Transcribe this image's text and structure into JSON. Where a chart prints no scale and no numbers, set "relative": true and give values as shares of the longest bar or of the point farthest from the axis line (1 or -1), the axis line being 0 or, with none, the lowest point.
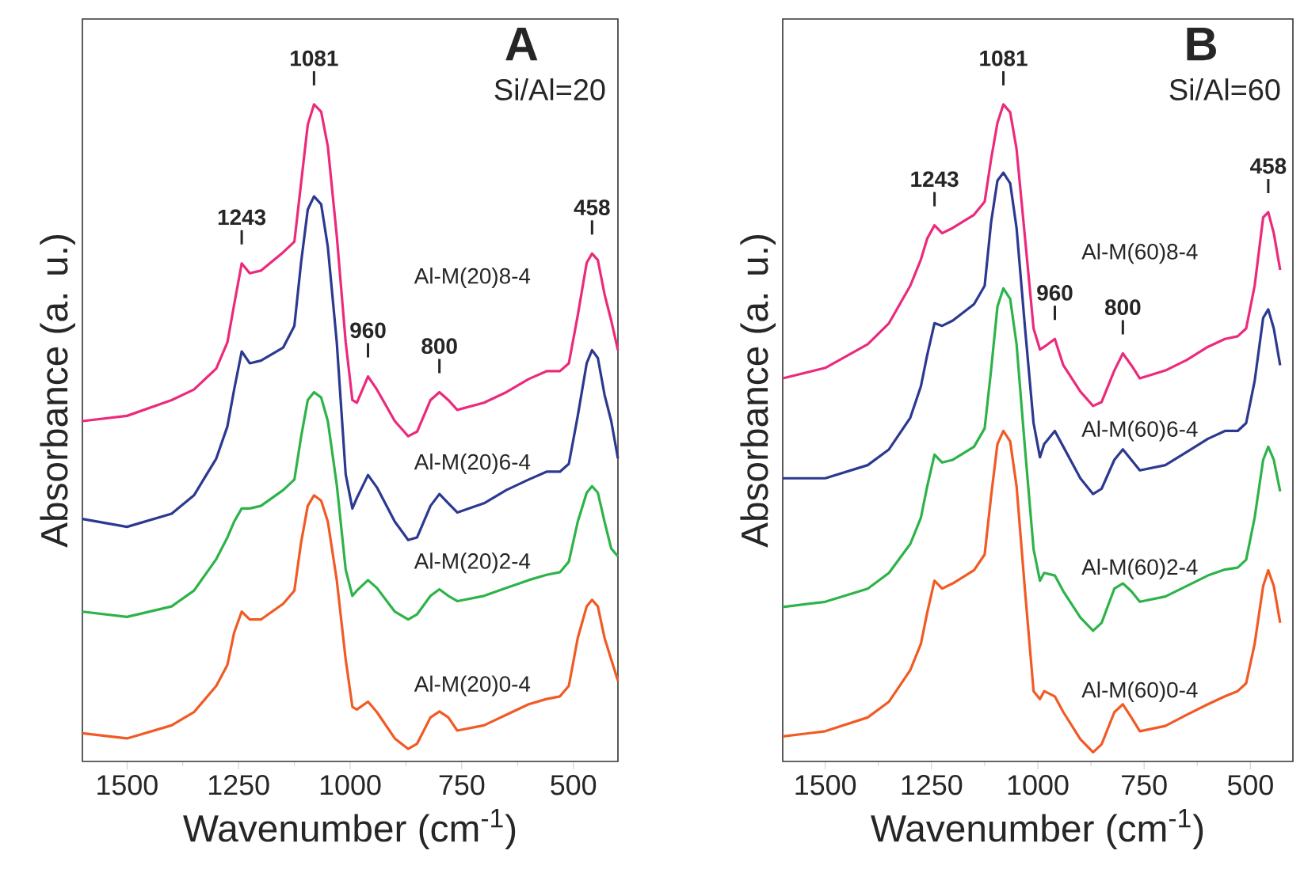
{
  "chart_data": [
    {
      "type": "line",
      "title": "A",
      "subtitle": "Si/Al=20",
      "xlabel": "Wavenumber (cm$^{-1}$)",
      "ylabel": "Absorbance (a. u.)",
      "relative": true,
      "xlim": [
        1600,
        400
      ],
      "xticks": [
        1500,
        1250,
        1000,
        750,
        500
      ],
      "x": [
        1600,
        1500,
        1400,
        1350,
        1300,
        1275,
        1260,
        1243,
        1225,
        1200,
        1150,
        1125,
        1110,
        1095,
        1081,
        1065,
        1050,
        1030,
        1010,
        995,
        985,
        960,
        940,
        900,
        870,
        850,
        820,
        800,
        780,
        760,
        700,
        650,
        600,
        560,
        530,
        510,
        490,
        470,
        458,
        445,
        430,
        415,
        400
      ],
      "series": [
        {
          "name": "Al-M(20)8-4",
          "color": "#ec2a7c",
          "values": [
            0.518,
            0.526,
            0.55,
            0.566,
            0.598,
            0.638,
            0.695,
            0.758,
            0.743,
            0.747,
            0.775,
            0.791,
            0.88,
            0.969,
            1,
            0.989,
            0.936,
            0.8,
            0.638,
            0.55,
            0.546,
            0.586,
            0.566,
            0.518,
            0.495,
            0.502,
            0.55,
            0.562,
            0.55,
            0.535,
            0.546,
            0.562,
            0.582,
            0.594,
            0.594,
            0.606,
            0.679,
            0.759,
            0.773,
            0.763,
            0.711,
            0.671,
            0.626
          ]
        },
        {
          "name": "Al-M(20)6-4",
          "color": "#2b3990",
          "values": [
            0.369,
            0.357,
            0.377,
            0.405,
            0.461,
            0.51,
            0.566,
            0.624,
            0.606,
            0.61,
            0.63,
            0.663,
            0.759,
            0.84,
            0.86,
            0.848,
            0.783,
            0.638,
            0.437,
            0.385,
            0.401,
            0.436,
            0.417,
            0.365,
            0.337,
            0.341,
            0.389,
            0.407,
            0.393,
            0.379,
            0.393,
            0.413,
            0.429,
            0.441,
            0.441,
            0.453,
            0.526,
            0.606,
            0.626,
            0.614,
            0.558,
            0.518,
            0.461
          ]
        },
        {
          "name": "Al-M(20)2-4",
          "color": "#2db34a",
          "values": [
            0.228,
            0.22,
            0.236,
            0.26,
            0.308,
            0.341,
            0.365,
            0.385,
            0.385,
            0.389,
            0.413,
            0.429,
            0.494,
            0.55,
            0.562,
            0.554,
            0.518,
            0.421,
            0.292,
            0.252,
            0.26,
            0.276,
            0.264,
            0.228,
            0.216,
            0.224,
            0.252,
            0.262,
            0.252,
            0.244,
            0.252,
            0.264,
            0.276,
            0.284,
            0.288,
            0.304,
            0.365,
            0.409,
            0.419,
            0.409,
            0.365,
            0.324,
            0.312
          ]
        },
        {
          "name": "Al-M(20)0-4",
          "color": "#f15a24",
          "values": [
            0.043,
            0.035,
            0.055,
            0.075,
            0.115,
            0.147,
            0.196,
            0.228,
            0.216,
            0.216,
            0.24,
            0.26,
            0.333,
            0.389,
            0.405,
            0.397,
            0.365,
            0.276,
            0.155,
            0.083,
            0.079,
            0.091,
            0.075,
            0.035,
            0.019,
            0.027,
            0.067,
            0.076,
            0.067,
            0.047,
            0.055,
            0.071,
            0.087,
            0.095,
            0.099,
            0.115,
            0.188,
            0.236,
            0.246,
            0.236,
            0.188,
            0.155,
            0.123
          ]
        }
      ],
      "annotations": [
        {
          "text": "1081",
          "x": 1081,
          "y": 1
        },
        {
          "text": "1243",
          "x": 1243,
          "y": 0.758
        },
        {
          "text": "960",
          "x": 960,
          "y": 0.586
        },
        {
          "text": "800",
          "x": 800,
          "y": 0.562
        },
        {
          "text": "458",
          "x": 458,
          "y": 0.773
        }
      ]
    },
    {
      "type": "line",
      "title": "B",
      "subtitle": "Si/Al=60",
      "xlabel": "Wavenumber (cm$^{-1}$)",
      "ylabel": "Absorbance (a. u.)",
      "relative": true,
      "xlim": [
        1600,
        400
      ],
      "xticks": [
        1500,
        1250,
        1000,
        750,
        500
      ],
      "x": [
        1600,
        1500,
        1400,
        1350,
        1300,
        1275,
        1260,
        1243,
        1225,
        1200,
        1150,
        1125,
        1110,
        1095,
        1081,
        1065,
        1050,
        1030,
        1010,
        995,
        985,
        960,
        940,
        900,
        870,
        850,
        820,
        800,
        780,
        760,
        700,
        650,
        600,
        560,
        530,
        510,
        490,
        470,
        458,
        445,
        430
      ],
      "series": [
        {
          "name": "Al-M(60)8-4",
          "color": "#ec2a7c",
          "values": [
            0.583,
            0.599,
            0.635,
            0.667,
            0.724,
            0.764,
            0.796,
            0.816,
            0.804,
            0.812,
            0.832,
            0.852,
            0.916,
            0.972,
            1,
            0.988,
            0.932,
            0.796,
            0.659,
            0.627,
            0.631,
            0.643,
            0.603,
            0.563,
            0.541,
            0.547,
            0.595,
            0.621,
            0.603,
            0.583,
            0.595,
            0.611,
            0.631,
            0.643,
            0.647,
            0.659,
            0.724,
            0.828,
            0.836,
            0.804,
            0.748
          ]
        },
        {
          "name": "Al-M(60)6-4",
          "color": "#2b3990",
          "values": [
            0.431,
            0.431,
            0.451,
            0.475,
            0.523,
            0.571,
            0.619,
            0.667,
            0.663,
            0.671,
            0.696,
            0.724,
            0.82,
            0.884,
            0.896,
            0.88,
            0.812,
            0.659,
            0.515,
            0.463,
            0.483,
            0.503,
            0.479,
            0.431,
            0.407,
            0.415,
            0.459,
            0.475,
            0.459,
            0.443,
            0.451,
            0.471,
            0.491,
            0.503,
            0.503,
            0.515,
            0.579,
            0.675,
            0.688,
            0.659,
            0.603
          ]
        },
        {
          "name": "Al-M(60)2-4",
          "color": "#2db34a",
          "values": [
            0.235,
            0.243,
            0.263,
            0.287,
            0.331,
            0.371,
            0.419,
            0.467,
            0.455,
            0.459,
            0.479,
            0.507,
            0.595,
            0.692,
            0.72,
            0.704,
            0.635,
            0.475,
            0.323,
            0.275,
            0.287,
            0.283,
            0.259,
            0.219,
            0.199,
            0.211,
            0.263,
            0.271,
            0.259,
            0.243,
            0.251,
            0.267,
            0.283,
            0.292,
            0.295,
            0.307,
            0.371,
            0.459,
            0.479,
            0.459,
            0.411
          ]
        },
        {
          "name": "Al-M(60)0-4",
          "color": "#f15a24",
          "values": [
            0.038,
            0.046,
            0.067,
            0.091,
            0.139,
            0.179,
            0.227,
            0.275,
            0.263,
            0.271,
            0.291,
            0.315,
            0.403,
            0.483,
            0.503,
            0.487,
            0.419,
            0.259,
            0.107,
            0.095,
            0.107,
            0.099,
            0.075,
            0.034,
            0.014,
            0.026,
            0.075,
            0.087,
            0.067,
            0.046,
            0.054,
            0.071,
            0.087,
            0.099,
            0.107,
            0.119,
            0.179,
            0.267,
            0.291,
            0.267,
            0.211
          ]
        }
      ],
      "annotations": [
        {
          "text": "1081",
          "x": 1081,
          "y": 1
        },
        {
          "text": "1243",
          "x": 1243,
          "y": 0.816
        },
        {
          "text": "960",
          "x": 960,
          "y": 0.643
        },
        {
          "text": "800",
          "x": 800,
          "y": 0.621
        },
        {
          "text": "458",
          "x": 458,
          "y": 0.836
        }
      ]
    }
  ]
}
